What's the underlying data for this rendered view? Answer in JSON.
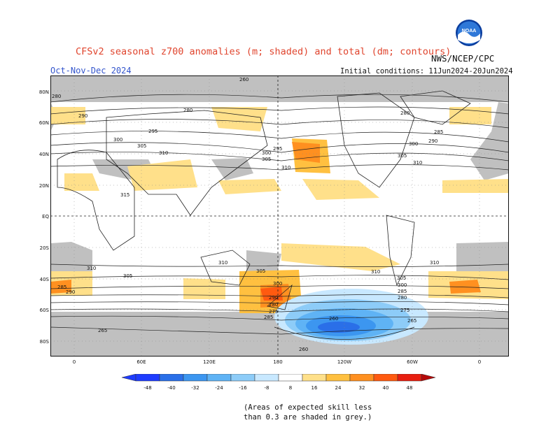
{
  "header": {
    "title": "CFSv2 seasonal z700 anomalies (m; shaded) and total (dm; contours)",
    "season": "Oct-Nov-Dec 2024",
    "agency": "NWS/NCEP/CPC",
    "initial_conditions": "Initial conditions: 11Jun2024-20Jun2024",
    "logo_text": "NOAA"
  },
  "map": {
    "lat_labels": [
      "80N",
      "60N",
      "40N",
      "20N",
      "EQ",
      "20S",
      "40S",
      "60S",
      "80S"
    ],
    "lon_labels": [
      "0",
      "60E",
      "120E",
      "180",
      "120W",
      "60W",
      "0"
    ],
    "contour_labels": [
      "260",
      "265",
      "270",
      "275",
      "280",
      "285",
      "290",
      "295",
      "300",
      "305",
      "310",
      "315"
    ],
    "land_color": "#c0c0c0",
    "ocean_color": "#ffffff"
  },
  "colorbar": {
    "labels": [
      "-48",
      "-40",
      "-32",
      "-24",
      "-16",
      "-8",
      "8",
      "16",
      "24",
      "32",
      "40",
      "48"
    ],
    "colors": [
      "#1e3cff",
      "#2a6fe8",
      "#3c96f0",
      "#5fb3f5",
      "#8dccf8",
      "#c8e8ff",
      "#ffffff",
      "#ffe08a",
      "#ffc040",
      "#ff9020",
      "#ff5a10",
      "#e81e10",
      "#b40a0a"
    ]
  },
  "footnote": {
    "line1": "(Areas of expected skill less",
    "line2": "than 0.3 are shaded in grey.)"
  }
}
